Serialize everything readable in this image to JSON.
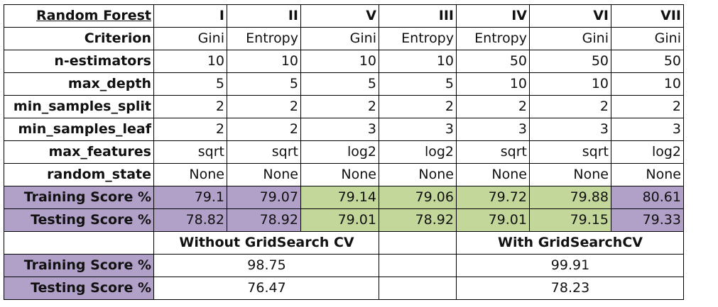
{
  "header": {
    "title": "Random Forest",
    "columns": [
      "I",
      "II",
      "V",
      "III",
      "IV",
      "VI",
      "VII"
    ]
  },
  "rows": [
    {
      "label": "Criterion",
      "values": [
        "Gini",
        "Entropy",
        "Gini",
        "Entropy",
        "Entropy",
        "Gini",
        "Gini"
      ]
    },
    {
      "label": "n-estimators",
      "values": [
        "10",
        "10",
        "10",
        "10",
        "50",
        "50",
        "50"
      ]
    },
    {
      "label": "max_depth",
      "values": [
        "5",
        "5",
        "5",
        "5",
        "10",
        "10",
        "10"
      ]
    },
    {
      "label": "min_samples_split",
      "values": [
        "2",
        "2",
        "2",
        "2",
        "2",
        "2",
        "2"
      ]
    },
    {
      "label": "min_samples_leaf",
      "values": [
        "2",
        "2",
        "3",
        "3",
        "3",
        "3",
        "3"
      ]
    },
    {
      "label": "max_features",
      "values": [
        "sqrt",
        "sqrt",
        "log2",
        "log2",
        "sqrt",
        "sqrt",
        "log2"
      ]
    },
    {
      "label": "random_state",
      "values": [
        "None",
        "None",
        "None",
        "None",
        "None",
        "None",
        "None"
      ]
    }
  ],
  "scores": [
    {
      "label": "Training Score %",
      "values": [
        "79.1",
        "79.07",
        "79.14",
        "79.06",
        "79.72",
        "79.88",
        "80.61"
      ]
    },
    {
      "label": "Testing Score %",
      "values": [
        "78.82",
        "78.92",
        "79.01",
        "78.92",
        "79.01",
        "79.15",
        "79.33"
      ]
    }
  ],
  "gridsearch": {
    "without_label": "Without GridSearch CV",
    "with_label": "With GridSearchCV",
    "rows": [
      {
        "label": "Training Score %",
        "without": "98.75",
        "with": "99.91"
      },
      {
        "label": "Testing Score %",
        "without": "76.47",
        "with": "78.23"
      }
    ]
  },
  "colors": {
    "purple": "#b1a0c7",
    "green": "#c4d79b"
  }
}
